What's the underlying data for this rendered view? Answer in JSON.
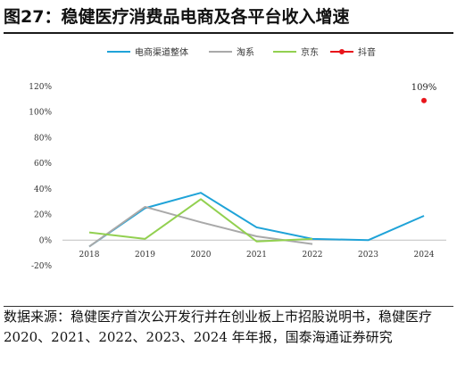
{
  "figure_title": "图27：稳健医疗消费品电商及各平台收入增速",
  "source_note": "数据来源：稳健医疗首次公开发行并在创业板上市招股说明书，稳健医疗 2020、2021、2022、2023、2024 年年报，国泰海通证券研究",
  "colors": {
    "电商渠道整体": "#1fa3d8",
    "淘系": "#a9a9a9",
    "京东": "#92d050",
    "抖音": "#e8151b"
  },
  "chart_data": {
    "type": "line",
    "categories": [
      "2018",
      "2019",
      "2020",
      "2021",
      "2022",
      "2023",
      "2024"
    ],
    "ylim": [
      -20,
      120
    ],
    "yticks": [
      "-20%",
      "0%",
      "20%",
      "40%",
      "60%",
      "80%",
      "100%",
      "120%"
    ],
    "ytick_values": [
      -20,
      0,
      20,
      40,
      60,
      80,
      100,
      120
    ],
    "legend_position": "top",
    "grid": false,
    "series": [
      {
        "name": "电商渠道整体",
        "marker": "line",
        "values": [
          -5,
          25,
          37,
          10,
          1,
          0,
          19
        ]
      },
      {
        "name": "淘系",
        "marker": "line",
        "values": [
          -5,
          26,
          14,
          3,
          -3,
          null,
          null
        ]
      },
      {
        "name": "京东",
        "marker": "line",
        "values": [
          6,
          1,
          32,
          -1,
          1,
          null,
          null
        ]
      },
      {
        "name": "抖音",
        "marker": "point",
        "values": [
          null,
          null,
          null,
          null,
          null,
          null,
          109
        ],
        "labels": [
          null,
          null,
          null,
          null,
          null,
          null,
          "109%"
        ]
      }
    ]
  }
}
